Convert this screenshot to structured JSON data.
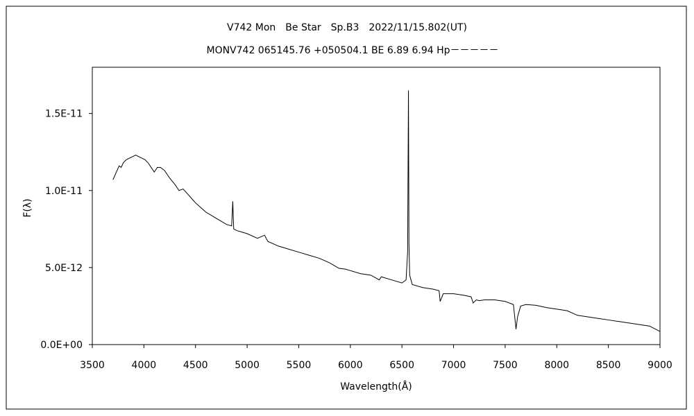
{
  "chart_data": {
    "type": "line",
    "title": "V742 Mon　Be Star　Sp.B3　2022/11/15.802(UT)",
    "subtitle": "MONV742 065145.76 +050504.1 BE 6.89 6.94 Hp－－－－－",
    "xlabel": "Wavelength(Å)",
    "ylabel": "F(λ)",
    "xlim": [
      3500,
      9000
    ],
    "ylim": [
      0,
      1.8e-11
    ],
    "grid": false,
    "x_ticks": [
      3500,
      4000,
      4500,
      5000,
      5500,
      6000,
      6500,
      7000,
      7500,
      8000,
      8500,
      9000
    ],
    "x_tick_labels": [
      "3500",
      "4000",
      "4500",
      "5000",
      "5500",
      "6000",
      "6500",
      "7000",
      "7500",
      "8000",
      "8500",
      "9000"
    ],
    "y_ticks": [
      0,
      5e-12,
      1e-11,
      1.5e-11
    ],
    "y_tick_labels": [
      "0.0E+00",
      "5.0E-12",
      "1.0E-11",
      "1.5E-11"
    ],
    "series": [
      {
        "color": "#000000",
        "x": [
          3700,
          3720,
          3740,
          3760,
          3780,
          3800,
          3830,
          3860,
          3890,
          3920,
          3950,
          3980,
          4010,
          4040,
          4070,
          4100,
          4130,
          4160,
          4200,
          4250,
          4300,
          4340,
          4380,
          4420,
          4460,
          4500,
          4550,
          4600,
          4650,
          4700,
          4750,
          4800,
          4850,
          4861,
          4870,
          4900,
          4950,
          5000,
          5100,
          5169,
          5200,
          5300,
          5400,
          5500,
          5600,
          5700,
          5800,
          5890,
          5950,
          6000,
          6100,
          6200,
          6280,
          6300,
          6400,
          6500,
          6540,
          6555,
          6563,
          6568,
          6575,
          6600,
          6700,
          6800,
          6860,
          6870,
          6900,
          7000,
          7100,
          7170,
          7190,
          7220,
          7250,
          7300,
          7400,
          7500,
          7580,
          7605,
          7620,
          7650,
          7700,
          7800,
          7900,
          8000,
          8100,
          8150,
          8200,
          8300,
          8400,
          8500,
          8600,
          8700,
          8800,
          8900,
          9000
        ],
        "y": [
          1.07e-11,
          1.1e-11,
          1.13e-11,
          1.16e-11,
          1.15e-11,
          1.18e-11,
          1.2e-11,
          1.21e-11,
          1.22e-11,
          1.23e-11,
          1.22e-11,
          1.21e-11,
          1.2e-11,
          1.18e-11,
          1.15e-11,
          1.12e-11,
          1.15e-11,
          1.15e-11,
          1.13e-11,
          1.08e-11,
          1.04e-11,
          1e-11,
          1.01e-11,
          9.8e-12,
          9.5e-12,
          9.2e-12,
          8.9e-12,
          8.6e-12,
          8.4e-12,
          8.2e-12,
          8e-12,
          7.8e-12,
          7.7e-12,
          9.3e-12,
          7.5e-12,
          7.4e-12,
          7.3e-12,
          7.2e-12,
          6.9e-12,
          7.1e-12,
          6.7e-12,
          6.4e-12,
          6.2e-12,
          6e-12,
          5.8e-12,
          5.6e-12,
          5.3e-12,
          4.95e-12,
          4.9e-12,
          4.8e-12,
          4.6e-12,
          4.5e-12,
          4.2e-12,
          4.4e-12,
          4.2e-12,
          4e-12,
          4.2e-12,
          6e-12,
          1.65e-11,
          6.5e-12,
          4.5e-12,
          3.9e-12,
          3.7e-12,
          3.6e-12,
          3.5e-12,
          2.8e-12,
          3.3e-12,
          3.3e-12,
          3.2e-12,
          3.1e-12,
          2.7e-12,
          2.9e-12,
          2.85e-12,
          2.9e-12,
          2.9e-12,
          2.8e-12,
          2.6e-12,
          1e-12,
          1.8e-12,
          2.5e-12,
          2.6e-12,
          2.55e-12,
          2.4e-12,
          2.3e-12,
          2.2e-12,
          2.05e-12,
          1.9e-12,
          1.8e-12,
          1.7e-12,
          1.6e-12,
          1.5e-12,
          1.4e-12,
          1.3e-12,
          1.2e-12,
          8.5e-13
        ]
      }
    ]
  }
}
